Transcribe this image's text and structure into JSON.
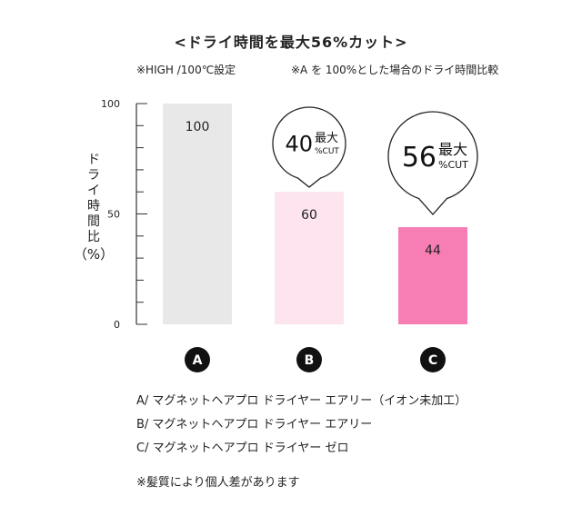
{
  "title": "<ドライ時間を最大56%カット>",
  "notes": {
    "left": "※HIGH /100℃設定",
    "right": "※A を 100%とした場合のドライ時間比較"
  },
  "legend": [
    "A/ マグネットヘアプロ ドライヤー エアリー（イオン未加工）",
    "B/ マグネットヘアプロ ドライヤー エアリー",
    "C/ マグネットヘアプロ ドライヤー ゼロ"
  ],
  "footnote": "※髪質により個人差があります",
  "chart_data": {
    "type": "bar",
    "categories": [
      "A",
      "B",
      "C"
    ],
    "values": [
      100,
      60,
      44
    ],
    "data_labels": [
      "100",
      "60",
      "44"
    ],
    "ylabel": "ドライ時間比",
    "yunit": "（%）",
    "ylim": [
      0,
      100
    ],
    "yticks": [
      "0",
      "50",
      "100"
    ],
    "colors": [
      "#e8e8e8",
      "#fde4ee",
      "#f77eb4"
    ],
    "callouts": [
      {
        "category": "B",
        "number": "40",
        "line1": "最大",
        "line2": "%CUT"
      },
      {
        "category": "C",
        "number": "56",
        "line1": "最大",
        "line2": "%CUT"
      }
    ]
  }
}
